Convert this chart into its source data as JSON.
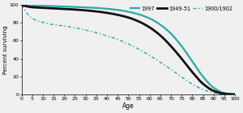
{
  "title": "",
  "xlabel": "Age",
  "ylabel": "Percent surviving",
  "xlim": [
    0,
    100
  ],
  "ylim": [
    0,
    100
  ],
  "xticks": [
    0,
    5,
    10,
    15,
    20,
    25,
    30,
    35,
    40,
    45,
    50,
    55,
    60,
    65,
    70,
    75,
    80,
    85,
    90,
    95,
    100
  ],
  "yticks": [
    0,
    20,
    40,
    60,
    80,
    100
  ],
  "legend": [
    "1997",
    "1949-51",
    "1900/1902"
  ],
  "background_color": "#f0f0f0",
  "color_1997": "#29a9a9",
  "color_1949": "#111111",
  "color_1900": "#29a9a9",
  "lw_1997": 1.6,
  "lw_1949": 2.0,
  "lw_1900": 1.0,
  "font_size": 5.5,
  "tick_font_size": 4.5,
  "ylabel_fontsize": 5.0,
  "ages": [
    0,
    5,
    10,
    15,
    20,
    25,
    30,
    35,
    40,
    45,
    50,
    55,
    60,
    65,
    70,
    75,
    80,
    85,
    90,
    95,
    100
  ],
  "y1997": [
    100,
    99.4,
    99.1,
    98.7,
    98.2,
    97.8,
    97.3,
    96.7,
    95.8,
    94.5,
    92.5,
    89.5,
    85.0,
    78.0,
    68.0,
    54.0,
    37.0,
    20.0,
    7.5,
    1.5,
    0.2
  ],
  "y1949": [
    100,
    97.5,
    96.8,
    96.2,
    95.6,
    94.9,
    94.0,
    92.8,
    91.2,
    89.0,
    86.0,
    81.5,
    75.0,
    66.0,
    54.0,
    40.0,
    25.0,
    12.0,
    4.0,
    0.8,
    0.1
  ],
  "y1900": [
    100,
    85.0,
    80.5,
    78.0,
    76.5,
    74.5,
    72.0,
    69.0,
    65.5,
    61.5,
    56.5,
    50.5,
    43.5,
    36.0,
    28.0,
    19.5,
    11.5,
    5.5,
    1.8,
    0.3,
    0.05
  ]
}
